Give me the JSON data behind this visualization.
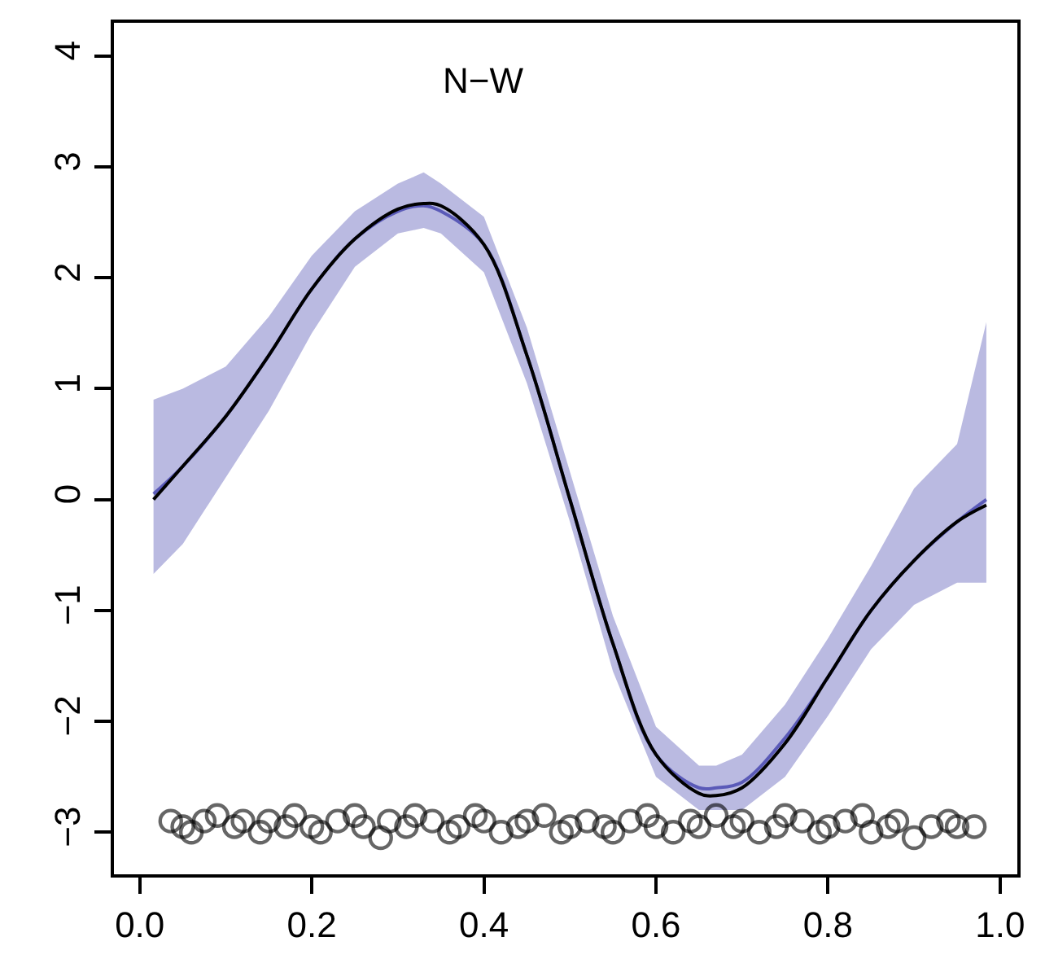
{
  "chart_data": {
    "type": "line",
    "title": "N−W",
    "xlim": [
      -0.03,
      1.02
    ],
    "ylim": [
      -3.38,
      4.3
    ],
    "xticks": [
      {
        "value": 0,
        "label": "0.0"
      },
      0.2,
      0.4,
      0.6,
      0.8,
      {
        "value": 1,
        "label": "1.0"
      }
    ],
    "yticks": [
      {
        "value": -3,
        "label": "−3"
      },
      {
        "value": -2,
        "label": "−2"
      },
      {
        "value": -1,
        "label": "−1"
      },
      0,
      1,
      2,
      3,
      4
    ],
    "series": [
      {
        "color": "#1a1a9c",
        "x": [
          0.016,
          0.05,
          0.1,
          0.15,
          0.2,
          0.25,
          0.3,
          0.33,
          0.35,
          0.4,
          0.45,
          0.5,
          0.55,
          0.6,
          0.65,
          0.67,
          0.7,
          0.75,
          0.8,
          0.85,
          0.9,
          0.95,
          0.984
        ],
        "values": [
          0.05,
          0.3,
          0.75,
          1.3,
          1.9,
          2.35,
          2.6,
          2.65,
          2.6,
          2.3,
          1.3,
          0.0,
          -1.3,
          -2.3,
          -2.6,
          -2.6,
          -2.55,
          -2.15,
          -1.6,
          -1.0,
          -0.55,
          -0.2,
          0.0
        ],
        "lower": [
          -0.67,
          -0.4,
          0.2,
          0.8,
          1.5,
          2.1,
          2.4,
          2.45,
          2.4,
          2.05,
          1.05,
          -0.2,
          -1.55,
          -2.5,
          -2.8,
          -2.8,
          -2.8,
          -2.5,
          -1.95,
          -1.35,
          -0.95,
          -0.75,
          -0.75
        ],
        "upper": [
          0.9,
          1.0,
          1.2,
          1.65,
          2.2,
          2.6,
          2.85,
          2.95,
          2.85,
          2.55,
          1.55,
          0.25,
          -1.05,
          -2.05,
          -2.4,
          -2.4,
          -2.3,
          -1.85,
          -1.25,
          -0.6,
          0.1,
          0.5,
          1.6
        ]
      },
      {
        "color": "#000000",
        "x": [
          0.016,
          0.05,
          0.1,
          0.15,
          0.2,
          0.25,
          0.3,
          0.33,
          0.35,
          0.4,
          0.45,
          0.5,
          0.55,
          0.6,
          0.65,
          0.67,
          0.7,
          0.75,
          0.8,
          0.85,
          0.9,
          0.95,
          0.984
        ],
        "values": [
          0.0,
          0.3,
          0.75,
          1.3,
          1.9,
          2.35,
          2.62,
          2.67,
          2.65,
          2.3,
          1.3,
          0.0,
          -1.3,
          -2.3,
          -2.65,
          -2.67,
          -2.6,
          -2.2,
          -1.6,
          -1.0,
          -0.55,
          -0.2,
          -0.05
        ]
      },
      {
        "type": "scatter",
        "color": "#000000",
        "marker": "circle",
        "x": [
          0.036,
          0.05,
          0.06,
          0.075,
          0.09,
          0.11,
          0.12,
          0.14,
          0.15,
          0.17,
          0.18,
          0.2,
          0.21,
          0.23,
          0.25,
          0.26,
          0.28,
          0.29,
          0.31,
          0.32,
          0.34,
          0.36,
          0.37,
          0.39,
          0.4,
          0.42,
          0.44,
          0.45,
          0.47,
          0.49,
          0.5,
          0.52,
          0.54,
          0.55,
          0.57,
          0.59,
          0.6,
          0.62,
          0.64,
          0.65,
          0.67,
          0.69,
          0.7,
          0.72,
          0.74,
          0.75,
          0.77,
          0.79,
          0.8,
          0.82,
          0.84,
          0.85,
          0.87,
          0.88,
          0.9,
          0.92,
          0.94,
          0.95,
          0.97
        ],
        "values": [
          -2.9,
          -2.95,
          -3.0,
          -2.9,
          -2.85,
          -2.95,
          -2.9,
          -3.0,
          -2.9,
          -2.95,
          -2.85,
          -2.95,
          -3.0,
          -2.9,
          -2.85,
          -2.95,
          -3.05,
          -2.9,
          -2.95,
          -2.85,
          -2.9,
          -3.0,
          -2.95,
          -2.85,
          -2.9,
          -3.0,
          -2.95,
          -2.9,
          -2.85,
          -3.0,
          -2.95,
          -2.9,
          -2.95,
          -3.0,
          -2.9,
          -2.85,
          -2.95,
          -3.0,
          -2.9,
          -2.95,
          -2.85,
          -2.95,
          -2.9,
          -3.0,
          -2.95,
          -2.85,
          -2.9,
          -3.0,
          -2.95,
          -2.9,
          -2.85,
          -3.0,
          -2.95,
          -2.9,
          -3.05,
          -2.95,
          -2.9,
          -2.95,
          -2.95
        ]
      }
    ]
  }
}
